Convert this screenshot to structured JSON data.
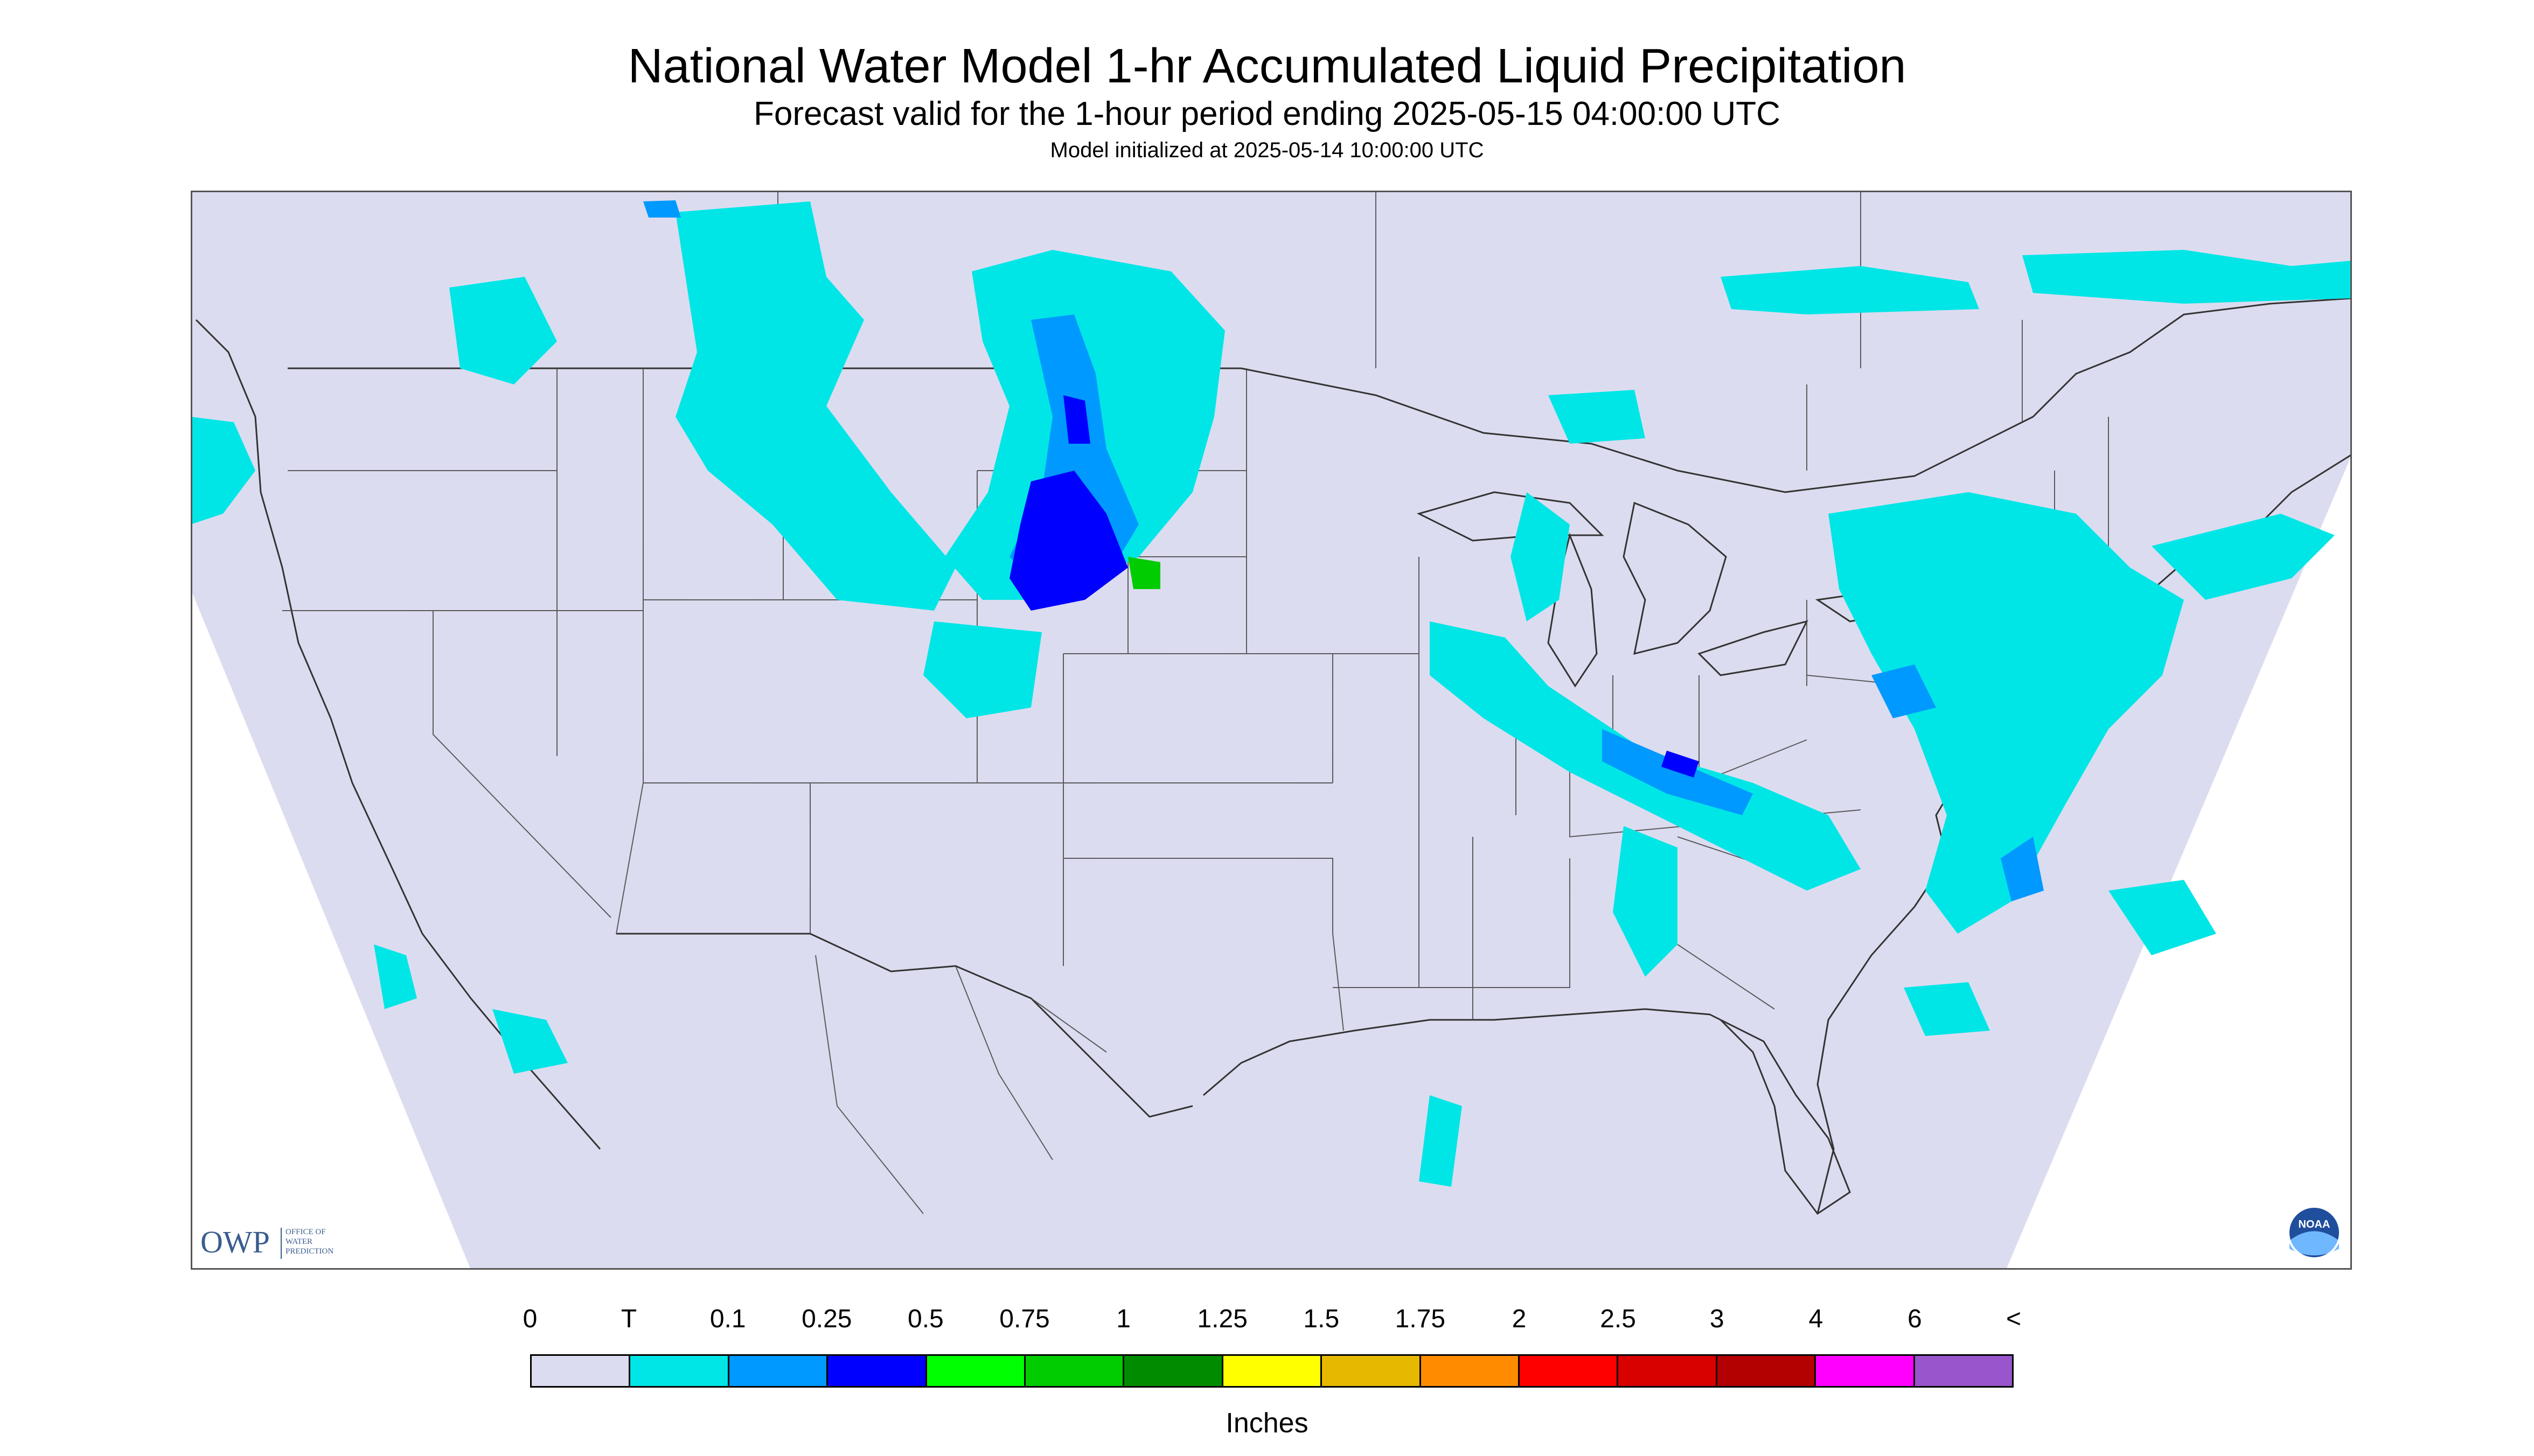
{
  "header": {
    "title": "National Water Model 1-hr Accumulated Liquid Precipitation",
    "subtitle": "Forecast valid for the 1-hour period ending 2025-05-15 04:00:00 UTC",
    "init_line": "Model initialized at 2025-05-14 10:00:00 UTC"
  },
  "logos": {
    "owp_mark": "OWP",
    "owp_text": [
      "OFFICE OF",
      "WATER",
      "PREDICTION"
    ],
    "noaa_mark": "NOAA"
  },
  "legend": {
    "tick_labels": [
      "0",
      "T",
      "0.1",
      "0.25",
      "0.5",
      "0.75",
      "1",
      "1.25",
      "1.5",
      "1.75",
      "2",
      "2.5",
      "3",
      "4",
      "6",
      "<"
    ],
    "colors": [
      "#dcdcf0",
      "#00e6e6",
      "#0099ff",
      "#0000ff",
      "#00ff00",
      "#00cc00",
      "#008c00",
      "#ffff00",
      "#e6b800",
      "#ff8c00",
      "#ff0000",
      "#d90000",
      "#b30000",
      "#ff00ff",
      "#9955cc"
    ],
    "units": "Inches"
  },
  "map_colors": {
    "background_domain": "#dcdcf0",
    "outside_domain": "#ffffff",
    "trace": "#00e6e6",
    "light": "#0099ff",
    "moderate": "#0000ff",
    "heavy": "#00cc00",
    "lines": "#333333"
  }
}
